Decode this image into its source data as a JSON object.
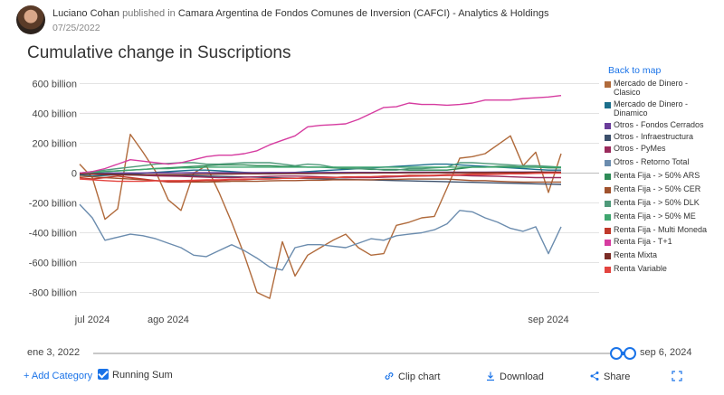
{
  "header": {
    "author": "Luciano Cohan",
    "published_in": "published in",
    "organization": "Camara Argentina de Fondos Comunes de Inversion (CAFCI) - Analytics & Holdings",
    "date": "07/25/2022"
  },
  "back_to_map": "Back to map",
  "range": {
    "start_label": "ene 3, 2022",
    "end_label": "sep 6, 2024"
  },
  "footer": {
    "add_category": "+ Add Category",
    "running_sum": "Running Sum",
    "clip_chart": "Clip chart",
    "download": "Download",
    "share": "Share"
  },
  "chart_data": {
    "type": "line",
    "title": "Cumulative change in Suscriptions",
    "ylabel": "",
    "xlabel": "",
    "ylim": [
      -900,
      700
    ],
    "yticks": [
      600,
      400,
      200,
      0,
      -200,
      -400,
      -600,
      -800
    ],
    "ytick_labels": [
      "600 billion",
      "400 billion",
      "200 billion",
      "0",
      "-200 billion",
      "-400 billion",
      "-600 billion",
      "-800 billion"
    ],
    "xlim": [
      0,
      41
    ],
    "xticks": [
      {
        "x": 1,
        "label": "jul 2024"
      },
      {
        "x": 7,
        "label": "ago 2024"
      },
      {
        "x": 37,
        "label": "sep 2024"
      }
    ],
    "series": [
      {
        "name": "Mercado de Dinero - Clasico",
        "color": "#b06a3b",
        "values": [
          60,
          -30,
          -310,
          -240,
          260,
          140,
          10,
          -180,
          -250,
          0,
          50,
          -130,
          -330,
          -550,
          -800,
          -840,
          -460,
          -690,
          -550,
          -500,
          -450,
          -410,
          -500,
          -550,
          -540,
          -350,
          -330,
          -300,
          -290,
          -100,
          100,
          110,
          130,
          190,
          250,
          50,
          140,
          -130,
          130
        ]
      },
      {
        "name": "Mercado de Dinero - Dinamico",
        "color": "#1b6f8c",
        "values": [
          -10,
          -20,
          -15,
          -10,
          -5,
          0,
          5,
          10,
          15,
          20,
          20,
          15,
          10,
          5,
          0,
          -5,
          0,
          5,
          10,
          15,
          20,
          25,
          30,
          35,
          40,
          45,
          50,
          55,
          60,
          60,
          55,
          50,
          45,
          40,
          35,
          30,
          25,
          20,
          20
        ]
      },
      {
        "name": "Otros - Fondos Cerrados",
        "color": "#6a3d9a",
        "values": [
          0,
          0,
          0,
          1,
          1,
          1,
          2,
          2,
          2,
          3,
          3,
          3,
          3,
          3,
          3,
          4,
          4,
          4,
          4,
          4,
          5,
          5,
          5,
          5,
          5,
          5,
          6,
          6,
          6,
          6,
          6,
          6,
          6,
          7,
          7,
          7,
          7,
          7,
          7
        ]
      },
      {
        "name": "Otros - Infraestructura",
        "color": "#3b4f6b",
        "values": [
          0,
          -2,
          -4,
          -6,
          -8,
          -10,
          -12,
          -14,
          -16,
          -18,
          -20,
          -22,
          -24,
          -26,
          -28,
          -30,
          -32,
          -34,
          -36,
          -38,
          -40,
          -42,
          -44,
          -46,
          -48,
          -50,
          -52,
          -54,
          -56,
          -58,
          -60,
          -62,
          -64,
          -66,
          -68,
          -70,
          -72,
          -74,
          -76
        ]
      },
      {
        "name": "Otros - PyMes",
        "color": "#9a2a5c",
        "values": [
          0,
          -5,
          -8,
          -10,
          -12,
          -15,
          -18,
          -20,
          -22,
          -25,
          -28,
          -30,
          -30,
          -28,
          -25,
          -22,
          -20,
          -20,
          -22,
          -25,
          -28,
          -30,
          -30,
          -30,
          -28,
          -25,
          -22,
          -20,
          -18,
          -15,
          -15,
          -18,
          -20,
          -22,
          -25,
          -28,
          -30,
          -30,
          -30
        ]
      },
      {
        "name": "Otros - Retorno Total",
        "color": "#6b8cae",
        "values": [
          -210,
          -300,
          -450,
          -430,
          -410,
          -420,
          -440,
          -470,
          -500,
          -550,
          -560,
          -520,
          -480,
          -520,
          -570,
          -630,
          -650,
          -500,
          -480,
          -480,
          -490,
          -500,
          -470,
          -440,
          -450,
          -420,
          -410,
          -400,
          -380,
          -340,
          -250,
          -260,
          -300,
          -330,
          -370,
          -390,
          -360,
          -540,
          -360
        ]
      },
      {
        "name": "Renta Fija - > 50% ARS",
        "color": "#2e8b57",
        "values": [
          0,
          5,
          10,
          15,
          20,
          25,
          30,
          35,
          40,
          45,
          50,
          55,
          55,
          55,
          50,
          50,
          45,
          45,
          40,
          40,
          35,
          30,
          30,
          25,
          25,
          25,
          20,
          20,
          20,
          20,
          30,
          40,
          40,
          45,
          45,
          40,
          40,
          35,
          35
        ]
      },
      {
        "name": "Renta Fija - > 50% CER",
        "color": "#a0522d",
        "values": [
          -20,
          -25,
          -30,
          -35,
          -40,
          -45,
          -50,
          -55,
          -58,
          -60,
          -60,
          -58,
          -55,
          -55,
          -55,
          -52,
          -50,
          -50,
          -48,
          -48,
          -45,
          -45,
          -45,
          -45,
          -42,
          -42,
          -40,
          -40,
          -40,
          -40,
          -45,
          -50,
          -50,
          -55,
          -58,
          -60,
          -60,
          -60,
          -60
        ]
      },
      {
        "name": "Renta Fija - > 50% DLK",
        "color": "#4f9a7a",
        "values": [
          0,
          10,
          20,
          30,
          40,
          50,
          60,
          65,
          70,
          70,
          60,
          60,
          65,
          70,
          70,
          70,
          60,
          50,
          60,
          55,
          40,
          35,
          30,
          30,
          20,
          20,
          30,
          30,
          35,
          40,
          70,
          70,
          65,
          60,
          55,
          50,
          50,
          45,
          40
        ]
      },
      {
        "name": "Renta Fija - > 50% ME",
        "color": "#3fa66f",
        "values": [
          0,
          5,
          10,
          15,
          20,
          25,
          30,
          30,
          35,
          35,
          40,
          40,
          40,
          40,
          40,
          40,
          40,
          40,
          40,
          40,
          40,
          40,
          40,
          40,
          40,
          40,
          40,
          40,
          40,
          40,
          40,
          40,
          40,
          40,
          40,
          40,
          40,
          40,
          40
        ]
      },
      {
        "name": "Renta Fija - Multi Moneda",
        "color": "#c0392b",
        "values": [
          -30,
          -40,
          -30,
          -20,
          -30,
          -40,
          -50,
          -60,
          -60,
          -55,
          -50,
          -50,
          -45,
          -45,
          -40,
          -40,
          -35,
          -35,
          -30,
          -30,
          -30,
          -25,
          -25,
          -25,
          -20,
          -20,
          -15,
          -15,
          -15,
          -10,
          -10,
          -5,
          -5,
          -5,
          0,
          0,
          5,
          5,
          5
        ]
      },
      {
        "name": "Renta Fija - T+1",
        "color": "#d63ca0",
        "values": [
          0,
          10,
          30,
          60,
          90,
          80,
          70,
          60,
          70,
          90,
          110,
          120,
          120,
          130,
          150,
          190,
          220,
          250,
          310,
          320,
          325,
          330,
          360,
          400,
          440,
          445,
          470,
          460,
          460,
          455,
          460,
          470,
          490,
          490,
          490,
          500,
          505,
          510,
          520
        ]
      },
      {
        "name": "Renta Mixta",
        "color": "#7b2d26",
        "values": [
          -5,
          -8,
          -10,
          -12,
          -12,
          -12,
          -10,
          -10,
          -10,
          -8,
          -8,
          -6,
          -6,
          -5,
          -5,
          -4,
          -4,
          -3,
          -3,
          -2,
          -2,
          -1,
          0,
          0,
          1,
          1,
          2,
          2,
          3,
          3,
          3,
          4,
          4,
          5,
          5,
          5,
          6,
          6,
          6
        ]
      },
      {
        "name": "Renta Variable",
        "color": "#e3443f",
        "values": [
          -40,
          -45,
          -50,
          -55,
          -55,
          -55,
          -52,
          -50,
          -50,
          -48,
          -45,
          -45,
          -42,
          -40,
          -40,
          -38,
          -35,
          -35,
          -32,
          -30,
          -30,
          -28,
          -25,
          -25,
          -22,
          -20,
          -20,
          -18,
          -15,
          -15,
          -12,
          -10,
          -10,
          -8,
          -5,
          -5,
          -2,
          0,
          0
        ]
      }
    ],
    "x": [
      0,
      1,
      2,
      3,
      4,
      5,
      6,
      7,
      8,
      9,
      10,
      11,
      12,
      13,
      14,
      15,
      16,
      17,
      18,
      19,
      20,
      21,
      22,
      23,
      24,
      25,
      26,
      27,
      28,
      29,
      30,
      31,
      32,
      33,
      34,
      35,
      36,
      37,
      38
    ]
  }
}
